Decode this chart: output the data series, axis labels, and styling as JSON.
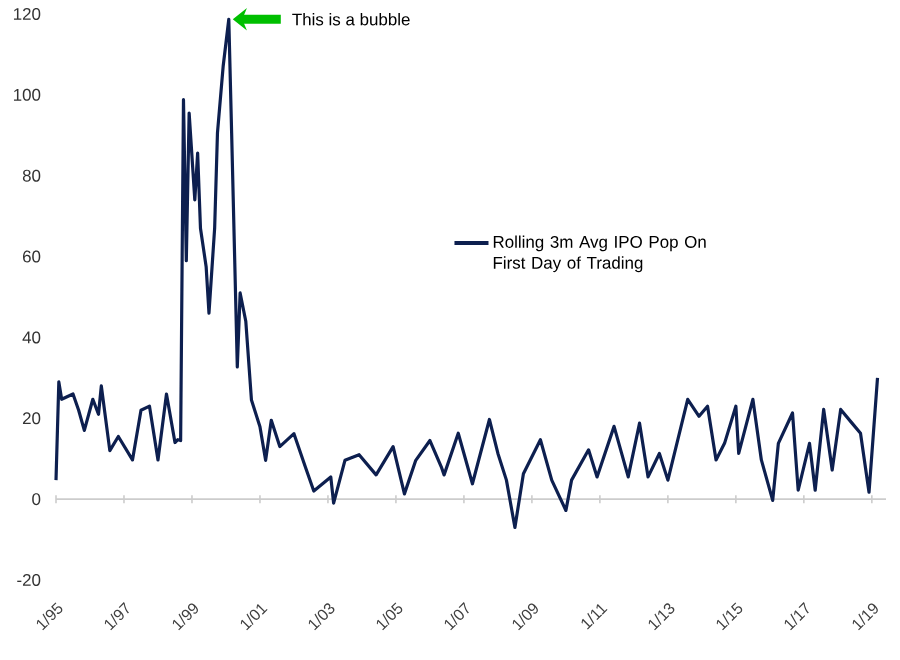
{
  "chart_data": {
    "type": "line",
    "x": [
      "1995-01",
      "1995-02",
      "1995-03",
      "1995-07",
      "1995-09",
      "1995-11",
      "1996-02",
      "1996-04",
      "1996-05",
      "1996-08",
      "1996-11",
      "1997-04",
      "1997-07",
      "1997-10",
      "1998-01",
      "1998-04",
      "1998-07",
      "1998-08",
      "1998-09",
      "1998-10",
      "1998-11",
      "1998-12",
      "1999-02",
      "1999-03",
      "1999-04",
      "1999-06",
      "1999-07",
      "1999-09",
      "1999-10",
      "1999-12",
      "2000-02",
      "2000-03",
      "2000-05",
      "2000-06",
      "2000-08",
      "2000-10",
      "2001-01",
      "2001-03",
      "2001-05",
      "2001-08",
      "2002-01",
      "2002-05",
      "2002-08",
      "2003-02",
      "2003-03",
      "2003-07",
      "2003-12",
      "2004-06",
      "2004-12",
      "2005-04",
      "2005-08",
      "2006-01",
      "2006-05",
      "2006-06",
      "2006-11",
      "2007-04",
      "2007-10",
      "2008-01",
      "2008-04",
      "2008-07",
      "2008-10",
      "2009-04",
      "2009-08",
      "2010-01",
      "2010-03",
      "2010-09",
      "2010-12",
      "2011-06",
      "2011-11",
      "2012-03",
      "2012-06",
      "2012-10",
      "2013-01",
      "2013-08",
      "2013-12",
      "2014-03",
      "2014-06",
      "2014-09",
      "2015-01",
      "2015-02",
      "2015-07",
      "2015-10",
      "2016-02",
      "2016-04",
      "2016-09",
      "2016-11",
      "2017-03",
      "2017-05",
      "2017-08",
      "2017-11",
      "2018-02",
      "2018-06",
      "2018-09",
      "2018-12",
      "2019-03"
    ],
    "series": [
      {
        "name": "Rolling 3m Avg IPO Pop On First Day of Trading",
        "color": "#0d1f4f",
        "values": [
          4.7,
          29,
          24.7,
          26,
          22,
          17,
          24.7,
          21,
          28,
          12,
          15.5,
          9.7,
          22,
          23,
          9.7,
          26,
          14,
          14.7,
          14.5,
          98.8,
          59,
          95.5,
          74,
          85.6,
          67,
          57.5,
          46,
          67,
          90.6,
          107,
          118.7,
          90.6,
          32.7,
          51,
          44,
          24.5,
          17.9,
          9.6,
          19.5,
          13,
          16.2,
          8,
          2,
          5.5,
          -1,
          9.6,
          11,
          6,
          13,
          1.3,
          9.6,
          14.5,
          8,
          6,
          16.3,
          3.8,
          19.7,
          11.3,
          4.7,
          -7,
          6.3,
          14.7,
          4.7,
          -2.8,
          4.7,
          12.2,
          5.5,
          18,
          5.5,
          18.8,
          5.5,
          11.3,
          4.7,
          24.7,
          20.5,
          23,
          9.7,
          13.8,
          23,
          11.3,
          24.7,
          9.7,
          -0.3,
          13.8,
          21.3,
          2.2,
          13.8,
          2.2,
          22.2,
          7.2,
          22.2,
          18.8,
          16.3,
          1.7,
          30
        ]
      }
    ],
    "xlim": [
      "1995-01",
      "2019-06"
    ],
    "ylim": [
      -20,
      120
    ],
    "xticks": [
      {
        "value": "1995-01",
        "label": "1/95"
      },
      {
        "value": "1997-01",
        "label": "1/97"
      },
      {
        "value": "1999-01",
        "label": "1/99"
      },
      {
        "value": "2001-01",
        "label": "1/01"
      },
      {
        "value": "2003-01",
        "label": "1/03"
      },
      {
        "value": "2005-01",
        "label": "1/05"
      },
      {
        "value": "2007-01",
        "label": "1/07"
      },
      {
        "value": "2009-01",
        "label": "1/09"
      },
      {
        "value": "2011-01",
        "label": "1/11"
      },
      {
        "value": "2013-01",
        "label": "1/13"
      },
      {
        "value": "2015-01",
        "label": "1/15"
      },
      {
        "value": "2017-01",
        "label": "1/17"
      },
      {
        "value": "2019-01",
        "label": "1/19"
      }
    ],
    "yticks": [
      -20,
      0,
      20,
      40,
      60,
      80,
      100,
      120
    ],
    "legend": "right",
    "annotations": [
      {
        "text": "This is a bubble",
        "x": "2000-02",
        "y": 118.7
      }
    ]
  }
}
